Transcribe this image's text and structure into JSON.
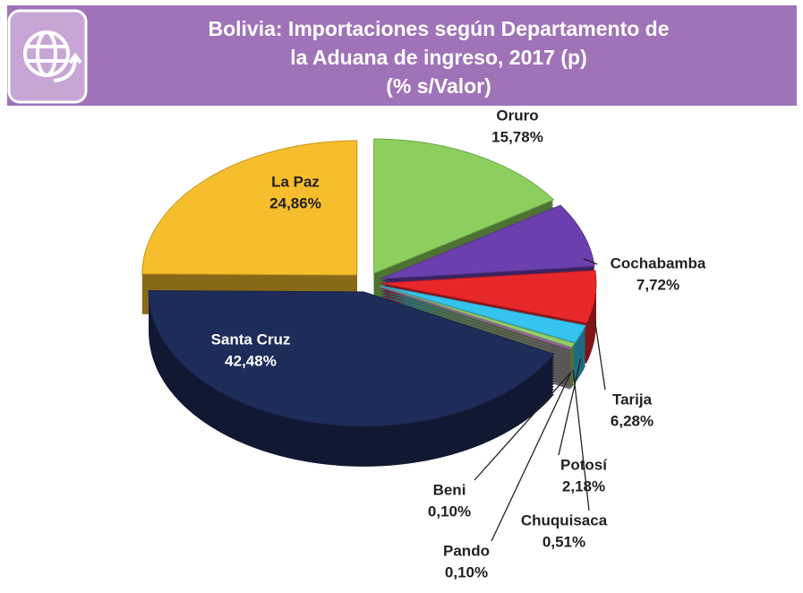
{
  "chart_data": {
    "type": "pie",
    "title": [
      "Bolivia: Importaciones según Departamento de",
      "la Aduana de ingreso, 2017 (p)"
    ],
    "subtitle": "(% s/Valor)",
    "categories": [
      "Oruro",
      "Cochabamba",
      "Tarija",
      "Potosí",
      "Chuquisaca",
      "Pando",
      "Beni",
      "Santa Cruz",
      "La Paz"
    ],
    "values": [
      15.78,
      7.72,
      6.28,
      2.18,
      0.51,
      0.1,
      0.1,
      42.48,
      24.86
    ],
    "value_labels": [
      "15,78%",
      "7,72%",
      "6,28%",
      "2,18%",
      "0,51%",
      "0,10%",
      "0,10%",
      "42,48%",
      "24,86%"
    ],
    "colors": [
      "#8ccf5e",
      "#6b3fae",
      "#e8272b",
      "#35c4ee",
      "#92cf68",
      "#9a9a9a",
      "#c272cc",
      "#1e2c5a",
      "#f6be2c"
    ]
  }
}
